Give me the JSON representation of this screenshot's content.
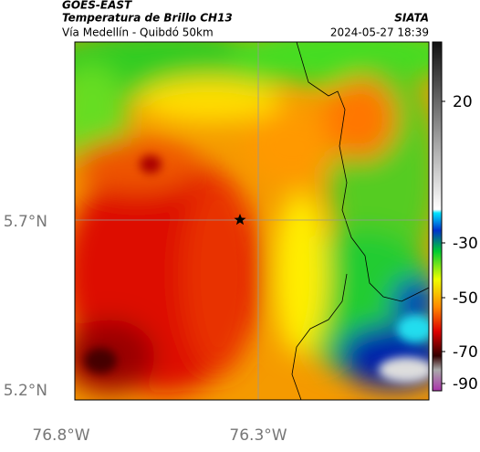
{
  "header": {
    "source": "GOES-EAST",
    "title": "Temperatura de Brillo CH13",
    "subtitle": "Vía Medellín - Quibdó 50km",
    "brand": "SIATA",
    "datetime": "2024-05-27 18:39"
  },
  "axes": {
    "lat_labels": [
      "5.7°N",
      "5.2°N"
    ],
    "lon_labels": [
      "76.8°W",
      "76.3°W"
    ]
  },
  "colorbar": {
    "ticks": [
      20,
      -30,
      -50,
      -70,
      -90
    ]
  }
}
